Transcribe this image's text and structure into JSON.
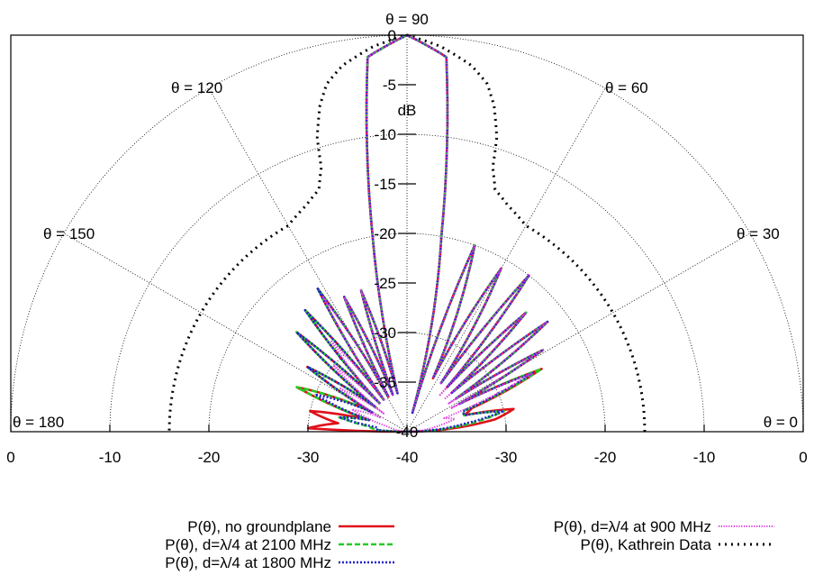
{
  "chart_data": {
    "type": "polar-line",
    "title_top": "θ = 90",
    "r_unit": "dB",
    "r_range": [
      -40,
      0
    ],
    "r_ticks": [
      -40,
      -35,
      -30,
      -25,
      -20,
      -15,
      -10,
      -5,
      0
    ],
    "x_ticks": [
      "0",
      "-10",
      "-20",
      "-30",
      "-40",
      "-30",
      "-20",
      "-10",
      "0"
    ],
    "angle_labels": [
      {
        "angle": 180,
        "text": "θ = 180"
      },
      {
        "angle": 150,
        "text": "θ = 150"
      },
      {
        "angle": 120,
        "text": "θ = 120"
      },
      {
        "angle": 60,
        "text": "θ = 60"
      },
      {
        "angle": 30,
        "text": "θ = 30"
      },
      {
        "angle": 0,
        "text": "θ = 0"
      }
    ],
    "grid": true,
    "legend_position": "bottom",
    "series": [
      {
        "name": "P(θ), no groundplane",
        "color": "#e0101a",
        "style": "solid",
        "points": [
          [
            0,
            -40
          ],
          [
            8,
            -31
          ],
          [
            12,
            -29
          ],
          [
            16,
            -34
          ],
          [
            20,
            -33
          ],
          [
            25,
            -25
          ],
          [
            28,
            -34
          ],
          [
            31,
            -24
          ],
          [
            34,
            -34
          ],
          [
            38,
            -22
          ],
          [
            41,
            -34
          ],
          [
            45,
            -23
          ],
          [
            48,
            -34
          ],
          [
            52,
            -20
          ],
          [
            55,
            -34
          ],
          [
            60,
            -21
          ],
          [
            64,
            -34
          ],
          [
            70,
            -20
          ],
          [
            74,
            -38
          ],
          [
            80,
            -20
          ],
          [
            84,
            -2
          ],
          [
            90,
            0
          ],
          [
            96,
            -2
          ],
          [
            100,
            -20
          ],
          [
            104,
            -36
          ],
          [
            108,
            -25
          ],
          [
            111,
            -36
          ],
          [
            115,
            -25
          ],
          [
            118,
            -36
          ],
          [
            122,
            -23
          ],
          [
            126,
            -36
          ],
          [
            130,
            -24
          ],
          [
            134,
            -36
          ],
          [
            138,
            -25
          ],
          [
            142,
            -36
          ],
          [
            147,
            -28
          ],
          [
            151,
            -36
          ],
          [
            158,
            -28
          ],
          [
            163,
            -36
          ],
          [
            168,
            -30
          ],
          [
            173,
            -33
          ],
          [
            178,
            -30
          ],
          [
            180,
            -40
          ]
        ]
      },
      {
        "name": "P(θ), d=λ/4 at 2100 MHz",
        "color": "#22cc22",
        "style": "dash",
        "points": [
          [
            0,
            -40
          ],
          [
            8,
            -33
          ],
          [
            12,
            -30
          ],
          [
            16,
            -34
          ],
          [
            20,
            -34
          ],
          [
            25,
            -25
          ],
          [
            28,
            -34
          ],
          [
            31,
            -24
          ],
          [
            34,
            -34
          ],
          [
            38,
            -22
          ],
          [
            41,
            -34
          ],
          [
            45,
            -23
          ],
          [
            48,
            -34
          ],
          [
            52,
            -20
          ],
          [
            55,
            -34
          ],
          [
            60,
            -21
          ],
          [
            64,
            -34
          ],
          [
            70,
            -20
          ],
          [
            74,
            -38
          ],
          [
            80,
            -20
          ],
          [
            84,
            -2
          ],
          [
            90,
            0
          ],
          [
            96,
            -2
          ],
          [
            100,
            -20
          ],
          [
            104,
            -36
          ],
          [
            108,
            -25
          ],
          [
            111,
            -36
          ],
          [
            115,
            -25
          ],
          [
            118,
            -36
          ],
          [
            122,
            -23
          ],
          [
            126,
            -36
          ],
          [
            130,
            -24
          ],
          [
            134,
            -36
          ],
          [
            138,
            -25
          ],
          [
            142,
            -36
          ],
          [
            147,
            -28
          ],
          [
            151,
            -36
          ],
          [
            158,
            -28
          ],
          [
            163,
            -36
          ],
          [
            168,
            -33
          ],
          [
            172,
            -36
          ],
          [
            177,
            -37
          ],
          [
            180,
            -40
          ]
        ]
      },
      {
        "name": "P(θ), d=λ/4 at 1800 MHz",
        "color": "#2222cc",
        "style": "dot",
        "points": [
          [
            0,
            -40
          ],
          [
            8,
            -34
          ],
          [
            12,
            -30
          ],
          [
            16,
            -34
          ],
          [
            20,
            -34
          ],
          [
            25,
            -26
          ],
          [
            28,
            -34
          ],
          [
            31,
            -24
          ],
          [
            34,
            -34
          ],
          [
            38,
            -22
          ],
          [
            41,
            -34
          ],
          [
            45,
            -23
          ],
          [
            48,
            -34
          ],
          [
            52,
            -20
          ],
          [
            55,
            -34
          ],
          [
            60,
            -21
          ],
          [
            64,
            -34
          ],
          [
            70,
            -20
          ],
          [
            74,
            -38
          ],
          [
            80,
            -20
          ],
          [
            84,
            -2
          ],
          [
            90,
            0
          ],
          [
            96,
            -2
          ],
          [
            100,
            -20
          ],
          [
            104,
            -36
          ],
          [
            108,
            -25
          ],
          [
            111,
            -36
          ],
          [
            115,
            -25
          ],
          [
            118,
            -36
          ],
          [
            122,
            -23
          ],
          [
            126,
            -36
          ],
          [
            130,
            -24
          ],
          [
            134,
            -36
          ],
          [
            138,
            -25
          ],
          [
            142,
            -36
          ],
          [
            147,
            -28
          ],
          [
            151,
            -36
          ],
          [
            158,
            -30
          ],
          [
            163,
            -36
          ],
          [
            168,
            -33
          ],
          [
            172,
            -37
          ],
          [
            177,
            -37
          ],
          [
            180,
            -40
          ]
        ]
      },
      {
        "name": "P(θ), d=λ/4 at 900 MHz",
        "color": "#dd33dd",
        "style": "finedot",
        "points": [
          [
            0,
            -40
          ],
          [
            10,
            -37
          ],
          [
            15,
            -35
          ],
          [
            20,
            -36
          ],
          [
            25,
            -26
          ],
          [
            28,
            -35
          ],
          [
            31,
            -24
          ],
          [
            34,
            -35
          ],
          [
            38,
            -22
          ],
          [
            41,
            -35
          ],
          [
            45,
            -23
          ],
          [
            48,
            -35
          ],
          [
            52,
            -20
          ],
          [
            55,
            -34
          ],
          [
            60,
            -21
          ],
          [
            64,
            -34
          ],
          [
            70,
            -20
          ],
          [
            74,
            -38
          ],
          [
            80,
            -20
          ],
          [
            84,
            -2
          ],
          [
            90,
            0
          ],
          [
            96,
            -2
          ],
          [
            100,
            -20
          ],
          [
            104,
            -36
          ],
          [
            108,
            -25
          ],
          [
            111,
            -36
          ],
          [
            115,
            -25
          ],
          [
            118,
            -36
          ],
          [
            122,
            -24
          ],
          [
            126,
            -36
          ],
          [
            130,
            -28
          ],
          [
            134,
            -36
          ],
          [
            138,
            -30
          ],
          [
            142,
            -37
          ],
          [
            147,
            -32
          ],
          [
            152,
            -37
          ],
          [
            158,
            -34
          ],
          [
            165,
            -38
          ],
          [
            172,
            -39
          ],
          [
            180,
            -40
          ]
        ]
      },
      {
        "name": "P(θ), Kathrein Data",
        "color": "#000000",
        "style": "wide-dot",
        "points": [
          [
            0,
            -16
          ],
          [
            10,
            -16
          ],
          [
            20,
            -16
          ],
          [
            30,
            -16
          ],
          [
            40,
            -16
          ],
          [
            50,
            -16
          ],
          [
            60,
            -16
          ],
          [
            66,
            -15
          ],
          [
            70,
            -14
          ],
          [
            72,
            -12
          ],
          [
            73,
            -9
          ],
          [
            75,
            -6
          ],
          [
            77,
            -4
          ],
          [
            80,
            -2.5
          ],
          [
            85,
            -1
          ],
          [
            90,
            0
          ],
          [
            95,
            -1
          ],
          [
            100,
            -2.5
          ],
          [
            103,
            -4
          ],
          [
            105,
            -6
          ],
          [
            107,
            -9
          ],
          [
            108,
            -12
          ],
          [
            110,
            -14
          ],
          [
            114,
            -15
          ],
          [
            120,
            -16
          ],
          [
            130,
            -16
          ],
          [
            140,
            -16
          ],
          [
            150,
            -16
          ],
          [
            160,
            -16
          ],
          [
            170,
            -16
          ],
          [
            180,
            -16
          ]
        ]
      }
    ]
  }
}
